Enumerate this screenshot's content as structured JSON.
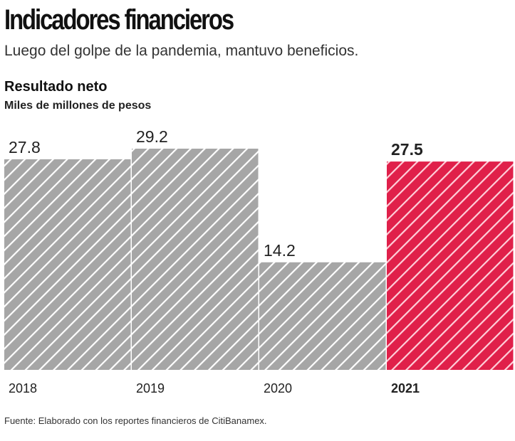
{
  "header": {
    "title": "Indicadores financieros",
    "subtitle": "Luego del golpe de la pandemia, mantuvo beneficios."
  },
  "chart_data": {
    "type": "bar",
    "title": "Resultado neto",
    "ylabel": "Miles de millones de pesos",
    "categories": [
      "2018",
      "2019",
      "2020",
      "2021"
    ],
    "values": [
      27.8,
      29.2,
      14.2,
      27.5
    ],
    "data_labels": [
      "27.8",
      "29.2",
      "14.2",
      "27.5"
    ],
    "highlight_index": 3,
    "colors": {
      "default": "#a6a6a6",
      "highlight": "#e0204a"
    },
    "pattern": "diagonal-stripes",
    "ylim": [
      0,
      29.2
    ],
    "grid": false
  },
  "footer": {
    "source": "Fuente: Elaborado con los reportes financieros de CitiBanamex."
  }
}
